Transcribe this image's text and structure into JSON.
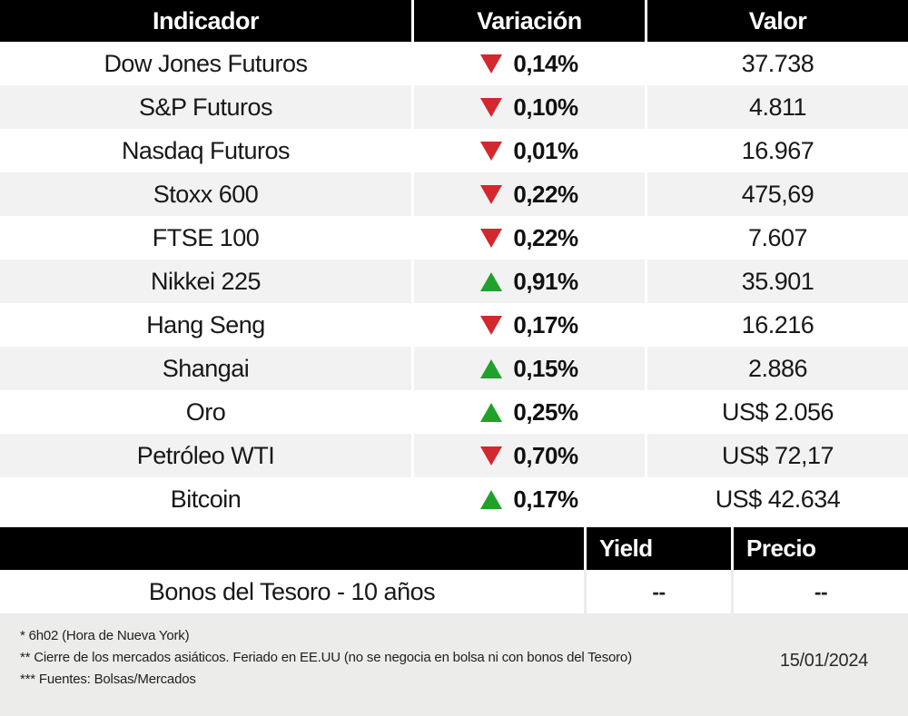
{
  "colors": {
    "red": "#d2282e",
    "green": "#1fa12b",
    "stripe": "#f2f2f2",
    "footer_bg": "#ececea",
    "header_bg": "#000000"
  },
  "chart_data": {
    "type": "table",
    "main_table": {
      "headers": [
        "Indicador",
        "Variación",
        "Valor"
      ],
      "rows": [
        {
          "indicator": "Dow Jones Futuros",
          "direction": "down",
          "variation": "0,14%",
          "value": "37.738"
        },
        {
          "indicator": "S&P Futuros",
          "direction": "down",
          "variation": "0,10%",
          "value": "4.811"
        },
        {
          "indicator": "Nasdaq Futuros",
          "direction": "down",
          "variation": "0,01%",
          "value": "16.967"
        },
        {
          "indicator": "Stoxx 600",
          "direction": "down",
          "variation": "0,22%",
          "value": "475,69"
        },
        {
          "indicator": "FTSE 100",
          "direction": "down",
          "variation": "0,22%",
          "value": "7.607"
        },
        {
          "indicator": "Nikkei 225",
          "direction": "up",
          "variation": "0,91%",
          "value": "35.901"
        },
        {
          "indicator": "Hang Seng",
          "direction": "down",
          "variation": "0,17%",
          "value": "16.216"
        },
        {
          "indicator": "Shangai",
          "direction": "up",
          "variation": "0,15%",
          "value": "2.886"
        },
        {
          "indicator": "Oro",
          "direction": "up",
          "variation": "0,25%",
          "value": "US$ 2.056"
        },
        {
          "indicator": "Petróleo WTI",
          "direction": "down",
          "variation": "0,70%",
          "value": "US$ 72,17"
        },
        {
          "indicator": "Bitcoin",
          "direction": "up",
          "variation": "0,17%",
          "value": "US$ 42.634"
        }
      ]
    },
    "bond_table": {
      "headers": [
        "Yield",
        "Precio"
      ],
      "row": {
        "name": "Bonos del Tesoro - 10 años",
        "yield": "--",
        "price": "--"
      }
    }
  },
  "footer": {
    "notes": [
      "* 6h02 (Hora de Nueva York)",
      "** Cierre de los mercados asiáticos. Feriado en EE.UU (no se negocia en bolsa ni con bonos del Tesoro)",
      "*** Fuentes: Bolsas/Mercados"
    ],
    "date": "15/01/2024"
  }
}
